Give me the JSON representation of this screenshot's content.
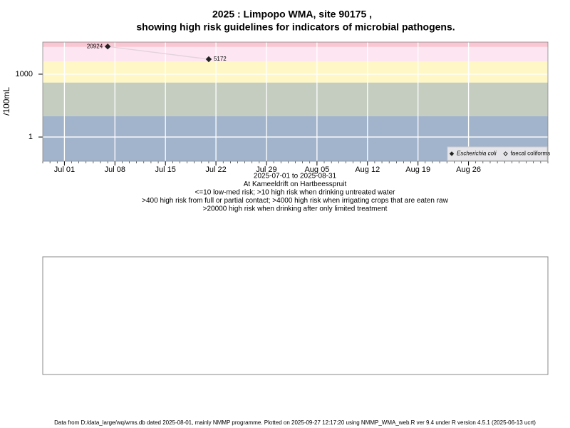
{
  "chart_data": {
    "type": "line",
    "title": "2025 : Limpopo WMA, site 90175 ,",
    "title2": "showing high risk guidelines for indicators of microbial pathogens.",
    "ylabel": "/100mL",
    "subtitle": [
      "2025-07-01 to 2025-08-31",
      "At Kameeldrift on Hartbeesspruit",
      "<=10 low-med risk; >10 high risk when drinking untreated water",
      ">400 high risk from full or partial contact; >4000 high risk when irrigating crops that are eaten raw",
      ">20000 high risk when drinking after only limited treatment"
    ],
    "footer": "Data from D:/data_large/wq/wms.db dated 2025-08-01, mainly NMMP programme. Plotted on 2025-09-27 12:17:20 using NMMP_WMA_web.R ver 9.4 under R version 4.5.1 (2025-06-13 ucrt)",
    "log_y": true,
    "grid": true,
    "legend": "bottom-right",
    "xlim": [
      "2025-06-28",
      "2025-09-06"
    ],
    "xticks": [
      {
        "value": "2025-07-01",
        "label": "Jul 01"
      },
      {
        "value": "2025-07-08",
        "label": "Jul 08"
      },
      {
        "value": "2025-07-15",
        "label": "Jul 15"
      },
      {
        "value": "2025-07-22",
        "label": "Jul 22"
      },
      {
        "value": "2025-07-29",
        "label": "Jul 29"
      },
      {
        "value": "2025-08-05",
        "label": "Aug 05"
      },
      {
        "value": "2025-08-12",
        "label": "Aug 12"
      },
      {
        "value": "2025-08-19",
        "label": "Aug 19"
      },
      {
        "value": "2025-08-26",
        "label": "Aug 26"
      }
    ],
    "ylim": [
      0.07,
      34000
    ],
    "yticks": [
      1,
      1000
    ],
    "thresholds": [
      10,
      400,
      4000,
      20000
    ],
    "band_colors": [
      "#a2b4cc",
      "#c4cdc0",
      "#fff8c6",
      "#fde6f2",
      "#f9c6d4"
    ],
    "series": [
      {
        "name": "Escherichia coli",
        "color": "#222222",
        "line_color": "#e3d3dc",
        "filled": true,
        "x": [
          "2025-07-07",
          "2025-07-21"
        ],
        "values": [
          20924,
          5172
        ]
      },
      {
        "name": "faecal coliforms",
        "color": "#222222",
        "filled": false,
        "x": [],
        "values": []
      }
    ]
  }
}
